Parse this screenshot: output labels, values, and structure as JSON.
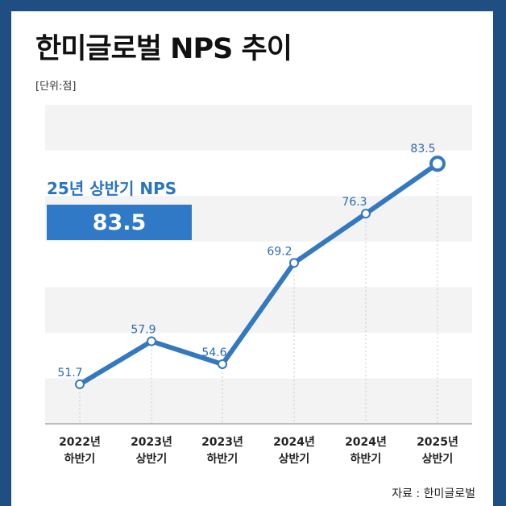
{
  "title": "한미글로벌 NPS 추이",
  "unit_label": "[단위:점]",
  "highlight": {
    "label": "25년 상반기 NPS",
    "value": "83.5"
  },
  "source": "자료 : 한미글로벌",
  "colors": {
    "frame": "#1f4e82",
    "line": "#3478c0",
    "accent": "#2f79c6",
    "band": "#f3f3f3"
  },
  "chart_data": {
    "type": "line",
    "categories": [
      [
        "2022년",
        "하반기"
      ],
      [
        "2023년",
        "상반기"
      ],
      [
        "2023년",
        "하반기"
      ],
      [
        "2024년",
        "상반기"
      ],
      [
        "2024년",
        "하반기"
      ],
      [
        "2025년",
        "상반기"
      ]
    ],
    "values": [
      51.7,
      57.9,
      54.6,
      69.2,
      76.3,
      83.5
    ],
    "data_labels": [
      "51.7",
      "57.9",
      "54.6",
      "69.2",
      "76.3",
      "83.5"
    ],
    "ylim": [
      46,
      92
    ],
    "grid": "alternating horizontal bands",
    "legend": "none"
  }
}
